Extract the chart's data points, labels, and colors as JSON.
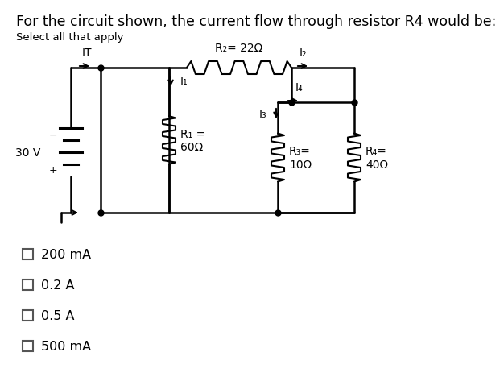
{
  "title": "For the circuit shown, the current flow through resistor R4 would be:",
  "subtitle": "Select all that apply",
  "title_fontsize": 12.5,
  "subtitle_fontsize": 9.5,
  "bg_color": "#ffffff",
  "text_color": "#000000",
  "choices": [
    "200 mA",
    "0.2 A",
    "0.5 A",
    "500 mA"
  ],
  "circuit": {
    "battery_label": "30 V",
    "R1_label": "R₁ =\n60Ω",
    "R2_label": "R₂= 22Ω",
    "R3_label": "R₃=\n10Ω",
    "R4_label": "R₄=\n40Ω",
    "IT_label": "IT",
    "I1_label": "I₁",
    "I2_label": "I₂",
    "I3_label": "I₃",
    "I4_label": "I₄"
  }
}
